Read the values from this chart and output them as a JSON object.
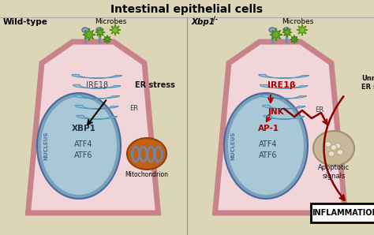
{
  "title": "Intestinal epithelial cells",
  "title_fontsize": 10,
  "bg_color": "#ddd5b8",
  "cell_fill": "#f2d5d8",
  "cell_border": "#c8828a",
  "cell_border_lw": 6,
  "er_color": "#8bc4d8",
  "er_edge": "#5090b0",
  "nucleus_outer_color": "#7aa0ba",
  "nucleus_inner_color": "#a8c8d8",
  "nucleus_text_color": "#5070a0",
  "mito_outer": "#c86010",
  "mito_fold_color": "#8ab0cc",
  "red_color": "#aa0000",
  "dark_red": "#880000",
  "black": "#111111",
  "divider_color": "#999999",
  "white": "#ffffff",
  "left_label": "Wild-type",
  "right_label": "Xbp1",
  "right_super": "-/-",
  "microbes_label": "Microbes",
  "ire1b": "IRE1β",
  "er_label": "ER",
  "er_stress": "ER stress",
  "xbp1": "XBP1",
  "atf4": "ATF4",
  "atf6": "ATF6",
  "nucleus_text": "NUCLEUS",
  "jnk": "JNK",
  "ap1": "AP-1",
  "unresolved": "Unresolved\nER stress",
  "apoptotic": "Apoptotic\nsignals",
  "inflammation": "INFLAMMATION",
  "mito_label": "Mitochondrion",
  "microbe_color1": "#6aaa28",
  "microbe_color2": "#88bb30",
  "microbe_color3": "#509820",
  "flagella_color": "#7090b0"
}
